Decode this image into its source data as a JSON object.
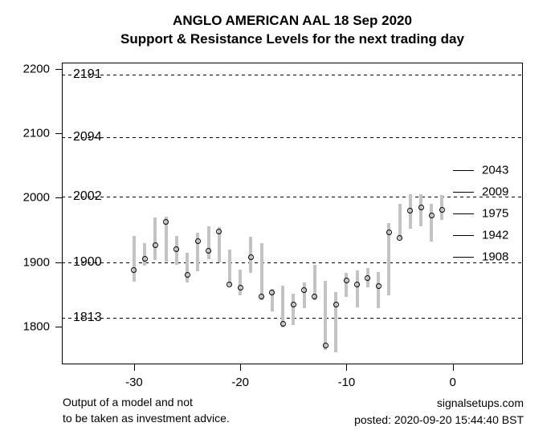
{
  "title": {
    "line1": "ANGLO AMERICAN AAL 18 Sep 2020",
    "line2": "Support & Resistance Levels for the next trading day"
  },
  "chart_data": {
    "type": "bar",
    "variant": "high-low-close",
    "title": "ANGLO AMERICAN AAL 18 Sep 2020",
    "subtitle": "Support & Resistance Levels for the next trading day",
    "xlabel": "",
    "ylabel": "",
    "grid": false,
    "bar_color": "#c3c3c3",
    "xticks": [
      -30,
      -20,
      -10,
      0
    ],
    "yticks": [
      1800,
      1900,
      2000,
      2100,
      2200
    ],
    "xlim": [
      -36.8,
      6.6
    ],
    "ylim": [
      1742,
      2209
    ],
    "support_resistance_levels": [
      2191,
      2094,
      2002,
      1900,
      1813
    ],
    "next_day_levels": [
      2043,
      2009,
      1975,
      1942,
      1908
    ],
    "x": [
      -30,
      -29,
      -28,
      -27,
      -26,
      -25,
      -24,
      -23,
      -22,
      -21,
      -20,
      -19,
      -18,
      -17,
      -16,
      -15,
      -14,
      -13,
      -12,
      -11,
      -10,
      -9,
      -8,
      -7,
      -6,
      -5,
      -4,
      -3,
      -2,
      -1
    ],
    "series": [
      {
        "name": "high",
        "values": [
          1941,
          1930,
          1969,
          1971,
          1941,
          1914,
          1945,
          1956,
          1954,
          1919,
          1888,
          1940,
          1930,
          1858,
          1863,
          1851,
          1869,
          1896,
          1871,
          1853,
          1883,
          1887,
          1891,
          1884,
          1961,
          1990,
          2006,
          2006,
          1990,
          2004
        ]
      },
      {
        "name": "low",
        "values": [
          1870,
          1895,
          1903,
          1901,
          1896,
          1868,
          1886,
          1905,
          1900,
          1864,
          1848,
          1883,
          1841,
          1824,
          1799,
          1803,
          1829,
          1841,
          1764,
          1760,
          1846,
          1830,
          1861,
          1828,
          1849,
          1936,
          1952,
          1955,
          1932,
          1965
        ]
      },
      {
        "name": "close",
        "values": [
          1888,
          1905,
          1926,
          1963,
          1920,
          1880,
          1933,
          1918,
          1947,
          1865,
          1860,
          1908,
          1846,
          1853,
          1804,
          1834,
          1857,
          1847,
          1771,
          1834,
          1872,
          1865,
          1875,
          1863,
          1946,
          1938,
          1980,
          1985,
          1972,
          1981
        ]
      }
    ]
  },
  "footer": {
    "disclaimer_line1": "Output of a model and not",
    "disclaimer_line2": "to be taken as investment advice.",
    "site": "signalsetups.com",
    "posted": "posted: 2020-09-20 15:44:40 BST"
  }
}
